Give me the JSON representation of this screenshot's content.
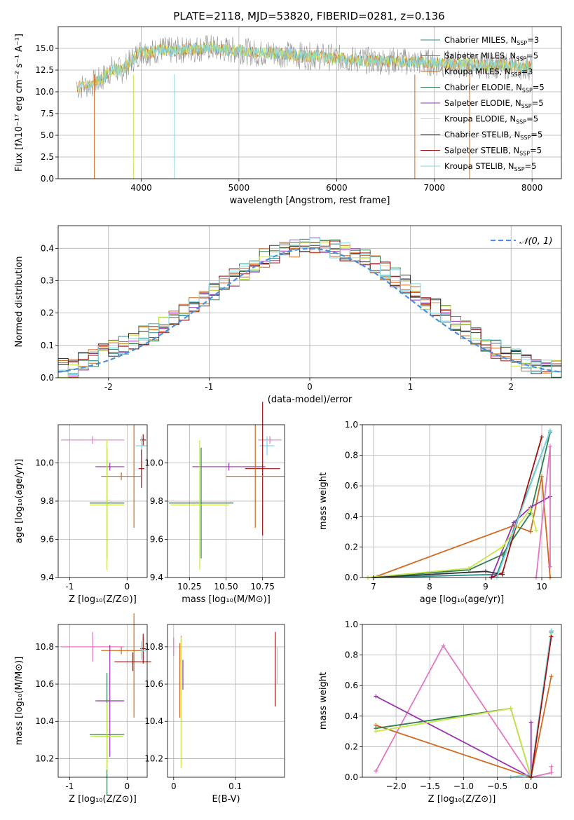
{
  "figure": {
    "title": "PLATE=2118, MJD=53820, FIBERID=0281, z=0.136"
  },
  "model_labels": [
    "Chabrier MILES, N<sub>SSP</sub>=3",
    "Salpeter MILES, N<sub>SSP</sub>=5",
    "Kroupa MILES, N<sub>SSP</sub>=3",
    "Chabrier ELODIE, N<sub>SSP</sub>=5",
    "Salpeter ELODIE, N<sub>SSP</sub>=5",
    "Kroupa ELODIE, N<sub>SSP</sub>=5",
    "Chabrier STELIB, N<sub>SSP</sub>=5",
    "Salpeter STELIB, N<sub>SSP</sub>=5",
    "Kroupa STELIB, N<sub>SSP</sub>=5"
  ],
  "model_colors": [
    "#2e8b8b",
    "#d2691e",
    "#d2691e",
    "#2f7f4f",
    "#9b30b0",
    "#c8e64a",
    "#333333",
    "#a01010",
    "#7fd6e8"
  ],
  "chart_data": [
    {
      "id": "spectrum",
      "type": "line",
      "xlabel": "wavelength [Angstrom, rest frame]",
      "ylabel": "Flux [fλ10⁻¹⁷ erg cm⁻² s⁻¹ A⁻¹]",
      "xlim": [
        3150,
        8300
      ],
      "ylim": [
        0,
        17.5
      ],
      "xticks": [
        4000,
        5000,
        6000,
        7000,
        8000
      ],
      "yticks": [
        0.0,
        2.5,
        5.0,
        7.5,
        10.0,
        12.5,
        15.0
      ],
      "legend": "right",
      "data_series": {
        "name": "",
        "x": [
          3340,
          3500,
          3600,
          3700,
          3800,
          3900,
          4000,
          4100,
          4200,
          4300,
          4400,
          4500,
          4600,
          4700,
          4800,
          4900,
          5000,
          5100,
          5200,
          5300,
          5400,
          5500,
          5600,
          5700,
          5800,
          5900,
          6000,
          6100,
          6200,
          6300,
          6400,
          6500,
          6600,
          6700,
          6800,
          6900,
          7000,
          7100,
          7200,
          7300,
          7400,
          7500,
          7600,
          7700,
          7800,
          7900,
          8000
        ],
        "y": [
          10.5,
          10.9,
          11.5,
          12.6,
          12.4,
          13.6,
          14.7,
          14.5,
          14.9,
          14.7,
          14.8,
          14.9,
          15.0,
          15.1,
          14.9,
          14.8,
          14.8,
          14.6,
          14.4,
          14.5,
          14.4,
          14.3,
          14.2,
          14.1,
          14.1,
          14.0,
          13.9,
          13.8,
          13.7,
          13.6,
          13.6,
          13.5,
          13.6,
          13.5,
          13.4,
          13.4,
          13.3,
          13.2,
          13.2,
          13.2,
          13.1,
          13.0,
          13.1,
          13.0,
          13.0,
          12.9,
          12.9
        ]
      }
    },
    {
      "id": "residuals",
      "type": "line",
      "xlabel": "(data-model)/error",
      "ylabel": "Normed distribution",
      "xlim": [
        -2.5,
        2.5
      ],
      "ylim": [
        0,
        0.47
      ],
      "xticks": [
        -2,
        -1,
        0,
        1,
        2
      ],
      "yticks": [
        0.0,
        0.1,
        0.2,
        0.3,
        0.4
      ],
      "legend": "top-right",
      "reference_label": "𝒩(0, 1)",
      "histogram": {
        "name": "",
        "bin_width": 0.1,
        "bins_start": -2.5,
        "values": [
          0.03,
          0.03,
          0.05,
          0.06,
          0.08,
          0.09,
          0.1,
          0.11,
          0.13,
          0.14,
          0.16,
          0.18,
          0.2,
          0.22,
          0.25,
          0.27,
          0.29,
          0.31,
          0.33,
          0.35,
          0.37,
          0.38,
          0.39,
          0.4,
          0.41,
          0.41,
          0.4,
          0.4,
          0.39,
          0.38,
          0.37,
          0.35,
          0.33,
          0.31,
          0.29,
          0.27,
          0.24,
          0.22,
          0.2,
          0.17,
          0.15,
          0.13,
          0.11,
          0.09,
          0.08,
          0.06,
          0.05,
          0.04,
          0.03,
          0.03
        ]
      }
    },
    {
      "id": "age_vs_z",
      "type": "scatter",
      "xlabel": "Z [log₁₀(Z/Z⊙)]",
      "ylabel": "age  [log₁₀(age/yr)]",
      "xlim": [
        -1.2,
        0.35
      ],
      "ylim": [
        9.4,
        10.2
      ],
      "xticks": [
        -1,
        0
      ],
      "yticks": [
        9.4,
        9.6,
        9.8,
        10.0
      ],
      "points": [
        {
          "x": -0.6,
          "y": 10.12,
          "xerr": 0.55,
          "yerr": 0.0,
          "c": "#e377c2"
        },
        {
          "x": 0.28,
          "y": 10.12,
          "xerr": 0.05,
          "yerr": 0.03,
          "c": "#a01010"
        },
        {
          "x": 0.25,
          "y": 10.09,
          "xerr": 0.1,
          "yerr": 0.05,
          "c": "#7fd6e8"
        },
        {
          "x": -0.3,
          "y": 9.98,
          "xerr": 0.25,
          "yerr": 0.0,
          "c": "#9b30b0"
        },
        {
          "x": 0.25,
          "y": 9.97,
          "xerr": 0.05,
          "yerr": 0.1,
          "c": "#a01010"
        },
        {
          "x": -0.1,
          "y": 9.93,
          "xerr": 0.35,
          "yerr": 0.0,
          "c": "#d2691e"
        },
        {
          "x": 0.12,
          "y": 9.93,
          "xerr": 0.0,
          "yerr": 0.27,
          "c": "#d2691e"
        },
        {
          "x": -0.35,
          "y": 9.79,
          "xerr": 0.3,
          "yerr": 0.29,
          "c": "#2f7f4f"
        },
        {
          "x": -0.35,
          "y": 9.78,
          "xerr": 0.3,
          "yerr": 0.34,
          "c": "#c8e64a"
        }
      ]
    },
    {
      "id": "age_vs_mass",
      "type": "scatter",
      "xlabel": "mass [log₁₀(M/M⊙)]",
      "ylabel": "",
      "xlim": [
        10.1,
        10.9
      ],
      "ylim": [
        9.4,
        10.2
      ],
      "xticks": [
        10.25,
        10.5,
        10.75
      ],
      "xticklabels": [
        "10.25",
        "10.50",
        "10.75"
      ],
      "yticks": [
        9.4,
        9.6,
        9.8,
        10.0
      ],
      "points": [
        {
          "x": 10.8,
          "y": 10.12,
          "xerr": 0.08,
          "yerr": 0.0,
          "c": "#e377c2"
        },
        {
          "x": 10.78,
          "y": 10.09,
          "xerr": 0.05,
          "yerr": 0.05,
          "c": "#7fd6e8"
        },
        {
          "x": 10.52,
          "y": 9.98,
          "xerr": 0.25,
          "yerr": 0.0,
          "c": "#9b30b0"
        },
        {
          "x": 10.75,
          "y": 9.97,
          "xerr": 0.12,
          "yerr": 0.35,
          "c": "#a01010"
        },
        {
          "x": 10.7,
          "y": 9.93,
          "xerr": 0.2,
          "yerr": 0.27,
          "c": "#d2691e"
        },
        {
          "x": 10.33,
          "y": 9.79,
          "xerr": 0.22,
          "yerr": 0.29,
          "c": "#2f7f4f"
        },
        {
          "x": 10.32,
          "y": 9.78,
          "xerr": 0.2,
          "yerr": 0.34,
          "c": "#c8e64a"
        }
      ]
    },
    {
      "id": "mass_weight_vs_age",
      "type": "line",
      "xlabel": "age  [log₁₀(age/yr)]",
      "ylabel": "mass weight",
      "xlim": [
        6.8,
        10.35
      ],
      "ylim": [
        0,
        1.0
      ],
      "xticks": [
        7,
        8,
        9,
        10
      ],
      "yticks": [
        0.0,
        0.2,
        0.4,
        0.6,
        0.8,
        1.0
      ],
      "series": [
        {
          "name": "",
          "color": "#2e8b8b",
          "x": [
            7.0,
            9.2,
            10.15
          ],
          "y": [
            0.0,
            0.02,
            0.96
          ]
        },
        {
          "name": "",
          "color": "#d2691e",
          "x": [
            7.0,
            9.5,
            9.8,
            10.0,
            10.15
          ],
          "y": [
            0.0,
            0.34,
            0.3,
            0.66,
            0.0
          ]
        },
        {
          "name": "",
          "color": "#2f7f4f",
          "x": [
            6.9,
            8.7,
            9.3,
            9.8,
            10.15
          ],
          "y": [
            0.0,
            0.05,
            0.15,
            0.42,
            0.95
          ]
        },
        {
          "name": "",
          "color": "#9b30b0",
          "x": [
            9.1,
            9.5,
            9.8,
            10.15
          ],
          "y": [
            0.0,
            0.36,
            0.46,
            0.53
          ]
        },
        {
          "name": "",
          "color": "#c8e64a",
          "x": [
            6.9,
            8.7,
            9.3,
            9.8,
            9.9
          ],
          "y": [
            0.0,
            0.06,
            0.2,
            0.45,
            0.31
          ]
        },
        {
          "name": "",
          "color": "#333333",
          "x": [
            7.0,
            9.0,
            9.3
          ],
          "y": [
            0.0,
            0.04,
            0.02
          ]
        },
        {
          "name": "",
          "color": "#a01010",
          "x": [
            9.1,
            9.3,
            10.0
          ],
          "y": [
            0.0,
            0.03,
            0.92
          ]
        },
        {
          "name": "",
          "color": "#7fd6e8",
          "x": [
            9.2,
            10.15
          ],
          "y": [
            0.0,
            0.96
          ]
        },
        {
          "name": "",
          "color": "#e377c2",
          "x": [
            9.9,
            10.15,
            10.15
          ],
          "y": [
            0.0,
            0.86,
            0.07
          ]
        }
      ]
    },
    {
      "id": "mass_vs_z",
      "type": "scatter",
      "xlabel": "Z [log₁₀(Z/Z⊙)]",
      "ylabel": "mass [log₁₀(M/M⊙)]",
      "xlim": [
        -1.2,
        0.35
      ],
      "ylim": [
        10.1,
        10.92
      ],
      "xticks": [
        -1,
        0
      ],
      "yticks": [
        10.2,
        10.4,
        10.6,
        10.8
      ],
      "points": [
        {
          "x": -0.6,
          "y": 10.8,
          "xerr": 0.55,
          "yerr": 0.08,
          "c": "#e377c2"
        },
        {
          "x": 0.28,
          "y": 10.79,
          "xerr": 0.05,
          "yerr": 0.08,
          "c": "#a01010"
        },
        {
          "x": 0.25,
          "y": 10.78,
          "xerr": 0.08,
          "yerr": 0.05,
          "c": "#7fd6e8"
        },
        {
          "x": -0.1,
          "y": 10.78,
          "xerr": 0.35,
          "yerr": 0.0,
          "c": "#d2691e"
        },
        {
          "x": 0.12,
          "y": 10.7,
          "xerr": 0.0,
          "yerr": 0.28,
          "c": "#d2691e"
        },
        {
          "x": 0.1,
          "y": 10.72,
          "xerr": 0.32,
          "yerr": 0.05,
          "c": "#a01010"
        },
        {
          "x": -0.3,
          "y": 10.51,
          "xerr": 0.25,
          "yerr": 0.3,
          "c": "#9b30b0"
        },
        {
          "x": -0.35,
          "y": 10.33,
          "xerr": 0.3,
          "yerr": 0.33,
          "c": "#2f7f4f"
        },
        {
          "x": -0.35,
          "y": 10.32,
          "xerr": 0.28,
          "yerr": 0.18,
          "c": "#c8e64a"
        }
      ]
    },
    {
      "id": "mass_vs_ebv",
      "type": "scatter",
      "xlabel": "E(B-V)",
      "ylabel": "",
      "xlim": [
        -0.01,
        0.18
      ],
      "ylim": [
        10.1,
        10.92
      ],
      "xticks": [
        0.0,
        0.1
      ],
      "yticks": [
        10.2,
        10.4,
        10.6,
        10.8
      ],
      "points": [
        {
          "x": 0.0,
          "y": 10.8,
          "xerr": 0.0,
          "yerr": 0.05,
          "c": "#e377c2"
        },
        {
          "x": 0.012,
          "y": 10.78,
          "xerr": 0.0,
          "yerr": 0.08,
          "c": "#e377c2"
        },
        {
          "x": 0.01,
          "y": 10.62,
          "xerr": 0.0,
          "yerr": 0.2,
          "c": "#d2691e"
        },
        {
          "x": 0.012,
          "y": 10.5,
          "xerr": 0.0,
          "yerr": 0.35,
          "c": "#c8e64a"
        },
        {
          "x": 0.015,
          "y": 10.65,
          "xerr": 0.0,
          "yerr": 0.08,
          "c": "#9b30b0"
        },
        {
          "x": 0.165,
          "y": 10.68,
          "xerr": 0.0,
          "yerr": 0.2,
          "c": "#a01010"
        },
        {
          "x": 0.168,
          "y": 10.7,
          "xerr": 0.0,
          "yerr": 0.1,
          "c": "#7fd6e8"
        }
      ]
    },
    {
      "id": "mass_weight_vs_z",
      "type": "line",
      "xlabel": "Z [log₁₀(Z/Z⊙)]",
      "ylabel": "mass weight",
      "xlim": [
        -2.5,
        0.45
      ],
      "ylim": [
        0,
        1.0
      ],
      "xticks": [
        -2.0,
        -1.5,
        -1.0,
        -0.5,
        0.0
      ],
      "xticklabels": [
        "−2.0",
        "−1.5",
        "−1.0",
        "−0.5",
        "0.0"
      ],
      "yticks": [
        0.0,
        0.2,
        0.4,
        0.6,
        0.8,
        1.0
      ],
      "series": [
        {
          "name": "",
          "color": "#e377c2",
          "x": [
            -2.3,
            -1.3,
            0.0,
            0.3,
            0.3
          ],
          "y": [
            0.04,
            0.86,
            0.0,
            0.03,
            0.07
          ]
        },
        {
          "name": "",
          "color": "#9b30b0",
          "x": [
            -2.3,
            0.0,
            0.0
          ],
          "y": [
            0.53,
            0.0,
            0.36
          ]
        },
        {
          "name": "",
          "color": "#d2691e",
          "x": [
            -2.3,
            0.0,
            0.3
          ],
          "y": [
            0.34,
            0.0,
            0.66
          ]
        },
        {
          "name": "",
          "color": "#2f7f4f",
          "x": [
            -2.3,
            -0.3,
            0.0,
            0.3
          ],
          "y": [
            0.32,
            0.45,
            0.0,
            0.95
          ]
        },
        {
          "name": "",
          "color": "#c8e64a",
          "x": [
            -2.3,
            -0.3,
            0.0,
            0.3
          ],
          "y": [
            0.3,
            0.45,
            0.0,
            0.94
          ]
        },
        {
          "name": "",
          "color": "#7fd6e8",
          "x": [
            -0.3,
            0.0,
            0.3
          ],
          "y": [
            0.0,
            0.02,
            0.96
          ]
        },
        {
          "name": "",
          "color": "#a01010",
          "x": [
            0.0,
            0.3
          ],
          "y": [
            0.0,
            0.92
          ]
        }
      ]
    }
  ]
}
